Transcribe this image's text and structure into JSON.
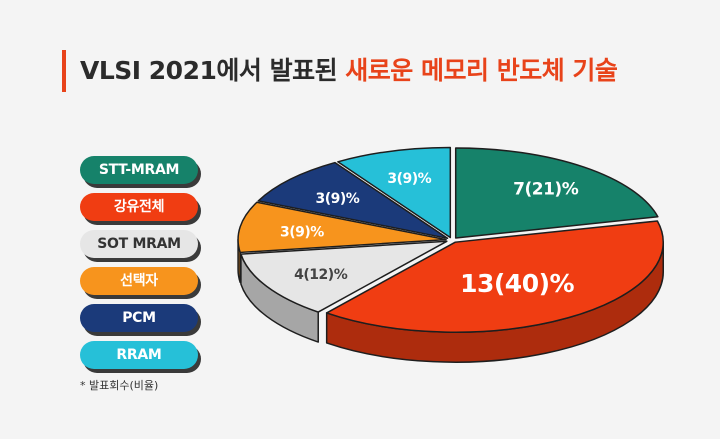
{
  "title": {
    "part_black": "VLSI 2021에서 발표된 ",
    "part_red": "새로운 메모리 반도체 기술"
  },
  "footnote": "* 발표회수(비율)",
  "colors": {
    "accent": "#e8431a",
    "stt_mram": "#16826a",
    "ferroelectric": "#f03d12",
    "sot_mram": "#e6e6e6",
    "pcram": "#f7941d",
    "pcm": "#1b3a7a",
    "rram": "#26c0d8"
  },
  "chart_data": {
    "type": "pie",
    "style": "3d-exploded",
    "legend_position": "left",
    "slices": [
      {
        "label": "STT-MRAM",
        "count": 7,
        "percent": 21,
        "text": "7(21)%",
        "color": "#16826a",
        "text_color": "#ffffff"
      },
      {
        "label": "강유전체",
        "count": 13,
        "percent": 40,
        "text": "13(40)%",
        "color": "#f03d12",
        "text_color": "#ffffff"
      },
      {
        "label": "SOT MRAM",
        "count": 4,
        "percent": 12,
        "text": "4(12)%",
        "color": "#e6e6e6",
        "text_color": "#444444"
      },
      {
        "label": "선택자",
        "count": 3,
        "percent": 9,
        "text": "3(9)%",
        "color": "#f7941d",
        "text_color": "#ffffff"
      },
      {
        "label": "PCM",
        "count": 3,
        "percent": 9,
        "text": "3(9)%",
        "color": "#1b3a7a",
        "text_color": "#ffffff"
      },
      {
        "label": "RRAM",
        "count": 3,
        "percent": 9,
        "text": "3(9)%",
        "color": "#26c0d8",
        "text_color": "#ffffff"
      }
    ]
  }
}
